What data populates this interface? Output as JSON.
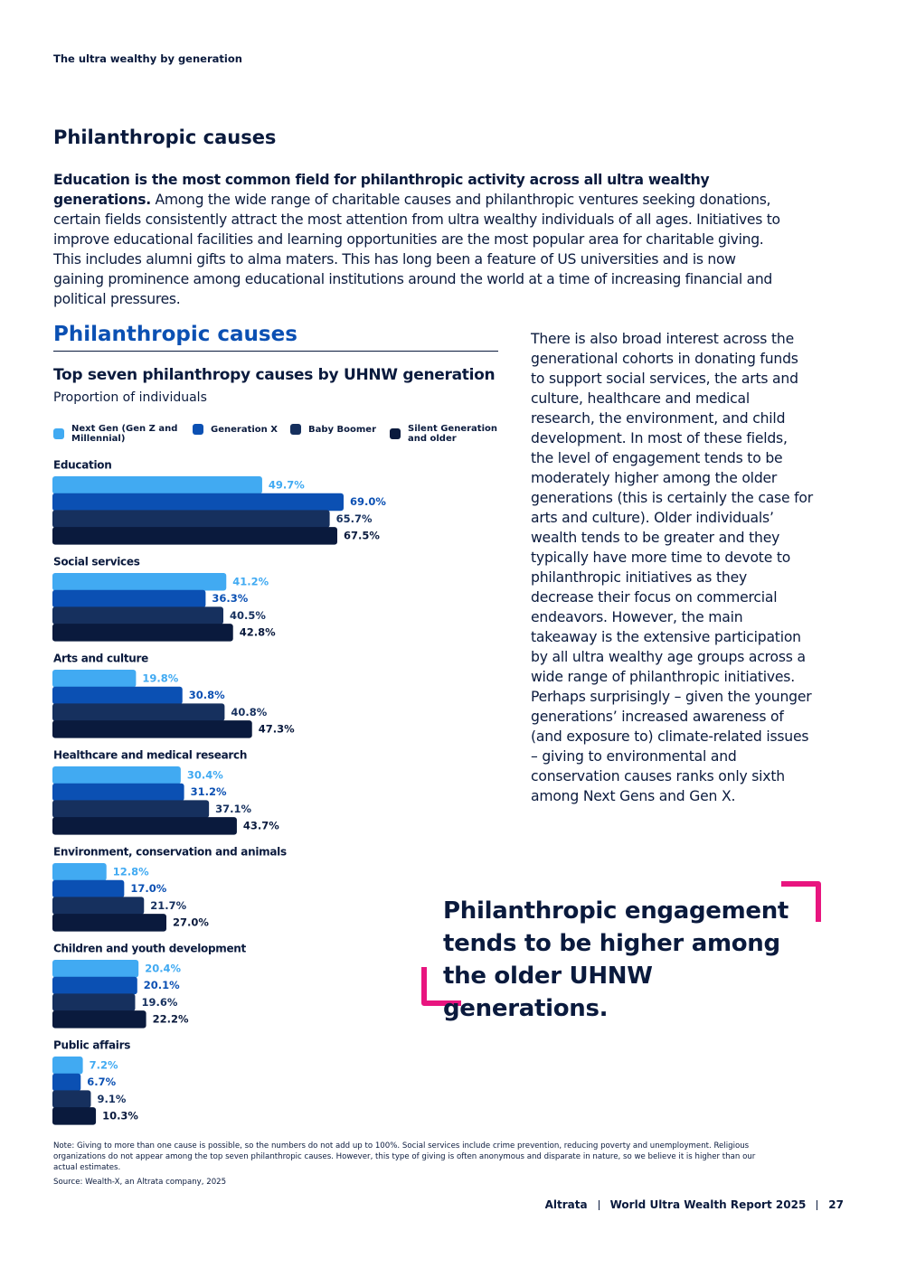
{
  "header": {
    "section": "The ultra wealthy by generation"
  },
  "heading": "Philanthropic causes",
  "intro": {
    "lead": "Education is the most common field for philanthropic activity across all ultra wealthy generations.",
    "text": "Among the wide range of charitable causes and philanthropic ventures seeking donations, certain fields consistently attract the most attention from ultra wealthy individuals of all ages. Initiatives to improve educational facilities and learning opportunities are the most popular area for charitable giving. This includes alumni gifts to alma maters. This has long been a feature of US universities and is now gaining prominence among educational institutions around the world at a time of increasing financial and political pressures."
  },
  "chart_data": {
    "type": "bar",
    "orientation": "horizontal",
    "section_title": "Philanthropic causes",
    "title": "Top seven philanthropy causes by UHNW generation",
    "subtitle": "Proportion of individuals",
    "categories": [
      "Education",
      "Social services",
      "Arts and culture",
      "Healthcare and medical research",
      "Environment, conservation and animals",
      "Children and youth development",
      "Public affairs"
    ],
    "series": [
      {
        "name": "Next Gen (Gen Z and Millennial)",
        "color": "#41aaf2",
        "values": [
          49.7,
          41.2,
          19.8,
          30.4,
          12.8,
          20.4,
          7.2
        ],
        "value_labels": [
          "49.7%",
          "41.2%",
          "19.8%",
          "30.4%",
          "12.8%",
          "20.4%",
          "7.2%"
        ]
      },
      {
        "name": "Generation X",
        "color": "#0b50b3",
        "values": [
          69.0,
          36.3,
          30.8,
          31.2,
          17.0,
          20.1,
          6.7
        ],
        "value_labels": [
          "69.0%",
          "36.3%",
          "30.8%",
          "31.2%",
          "17.0%",
          "20.1%",
          "6.7%"
        ]
      },
      {
        "name": "Baby Boomer",
        "color": "#16305e",
        "values": [
          65.7,
          40.5,
          40.8,
          37.1,
          21.7,
          19.6,
          9.1
        ],
        "value_labels": [
          "65.7%",
          "40.5%",
          "40.8%",
          "37.1%",
          "21.7%",
          "19.6%",
          "9.1%"
        ]
      },
      {
        "name": "Silent Generation and older",
        "color": "#0a1a3d",
        "values": [
          67.5,
          42.8,
          47.3,
          43.7,
          27.0,
          22.2,
          10.3
        ],
        "value_labels": [
          "67.5%",
          "42.8%",
          "47.3%",
          "43.7%",
          "27.0%",
          "22.2%",
          "10.3%"
        ]
      }
    ]
  },
  "side_text": "There is also broad interest across the generational cohorts in donating funds to support social services, the arts and culture, healthcare and medical research, the environment, and child development. In most of these fields, the level of engagement tends to be moderately higher among the older generations (this is certainly the case for arts and culture). Older individuals’ wealth tends to be greater and they typically have more time to devote to philanthropic initiatives as they decrease their focus on commercial endeavors. However, the main takeaway is the extensive participation by all ultra wealthy age groups across a wide range of philanthropic initiatives. Perhaps surprisingly – given the younger generations’ increased awareness of (and exposure to) climate-related issues – giving to environmental and conservation causes ranks only sixth among Next Gens and Gen X.",
  "quote": "Philanthropic engagement tends to be higher among the older UHNW generations.",
  "note": "Note: Giving to more than one cause is possible, so the numbers do not add up to 100%. Social services include crime prevention, reducing poverty and unemployment. Religious organizations do not appear among the top seven philanthropic causes. However, this type of giving is often anonymous and disparate in nature, so we believe it is higher than our actual estimates.",
  "source": "Source: Wealth-X, an Altrata company, 2025",
  "footer": {
    "brand": "Altrata",
    "report": "World Ultra Wealth Report 2025",
    "page": "27"
  }
}
